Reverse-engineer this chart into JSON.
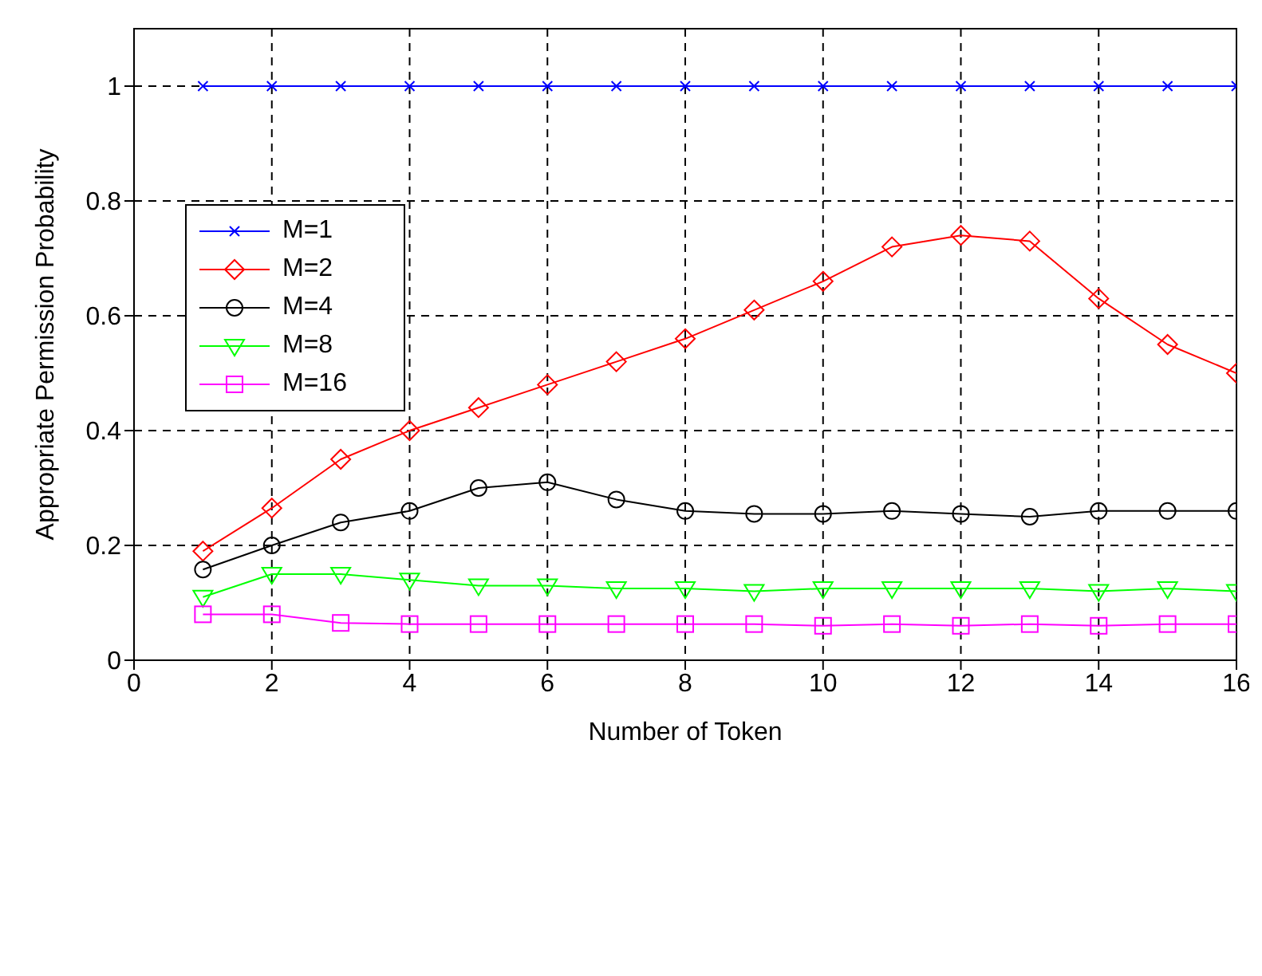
{
  "chart_data": {
    "type": "line",
    "xlabel": "Number of Token",
    "ylabel": "Appropriate Permission Probability",
    "x": [
      1,
      2,
      3,
      4,
      5,
      6,
      7,
      8,
      9,
      10,
      11,
      12,
      13,
      14,
      15,
      16
    ],
    "series": [
      {
        "name": "M=1",
        "color": "#0000ff",
        "marker": "cross",
        "values": [
          1,
          1,
          1,
          1,
          1,
          1,
          1,
          1,
          1,
          1,
          1,
          1,
          1,
          1,
          1,
          1
        ]
      },
      {
        "name": "M=2",
        "color": "#ff0000",
        "marker": "diamond",
        "values": [
          0.19,
          0.265,
          0.35,
          0.4,
          0.44,
          0.48,
          0.52,
          0.56,
          0.61,
          0.66,
          0.72,
          0.74,
          0.73,
          0.63,
          0.55,
          0.5
        ]
      },
      {
        "name": "M=4",
        "color": "#000000",
        "marker": "circle",
        "values": [
          0.158,
          0.2,
          0.24,
          0.26,
          0.3,
          0.31,
          0.28,
          0.26,
          0.255,
          0.255,
          0.26,
          0.255,
          0.25,
          0.26,
          0.26,
          0.26
        ]
      },
      {
        "name": "M=8",
        "color": "#00ff00",
        "marker": "triangle",
        "values": [
          0.11,
          0.15,
          0.15,
          0.14,
          0.13,
          0.13,
          0.125,
          0.125,
          0.12,
          0.125,
          0.125,
          0.125,
          0.125,
          0.12,
          0.125,
          0.12
        ]
      },
      {
        "name": "M=16",
        "color": "#ff00ff",
        "marker": "square",
        "values": [
          0.08,
          0.08,
          0.065,
          0.063,
          0.063,
          0.063,
          0.063,
          0.063,
          0.063,
          0.06,
          0.063,
          0.06,
          0.063,
          0.06,
          0.063,
          0.063
        ]
      }
    ],
    "xlim": [
      0,
      16
    ],
    "xticks": [
      0,
      2,
      4,
      6,
      8,
      10,
      12,
      14,
      16
    ],
    "ylim": [
      0,
      1.1
    ],
    "yticks": [
      0,
      0.2,
      0.4,
      0.6,
      0.8,
      1
    ],
    "grid": true,
    "legend": "top left",
    "line_style": "solid"
  }
}
